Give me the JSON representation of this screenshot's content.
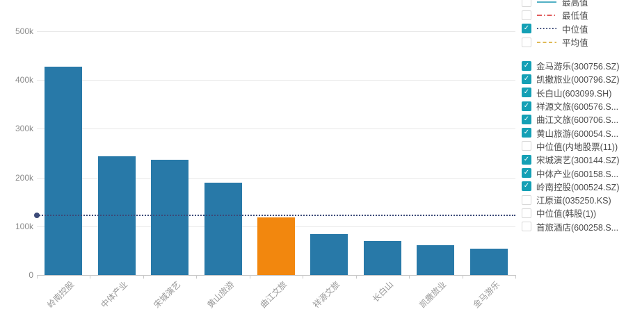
{
  "chart_data": {
    "type": "bar",
    "title": "",
    "xlabel": "",
    "ylabel": "",
    "categories": [
      "岭南控股",
      "中体产业",
      "宋城演艺",
      "黄山旅游",
      "曲江文旅",
      "祥源文旅",
      "长白山",
      "凯撒旅业",
      "金马游乐"
    ],
    "values": [
      427000,
      244000,
      236000,
      189000,
      118000,
      84000,
      70000,
      61000,
      54000
    ],
    "highlight_index": 4,
    "bar_color": "#2879a8",
    "highlight_color": "#f2870e",
    "median_value": 122000,
    "median_color": "#3c4a78",
    "ylim": [
      0,
      500000
    ],
    "y_ticks": [
      {
        "label": "0",
        "value": 0
      },
      {
        "label": "100k",
        "value": 100000
      },
      {
        "label": "200k",
        "value": 200000
      },
      {
        "label": "300k",
        "value": 300000
      },
      {
        "label": "400k",
        "value": 400000
      },
      {
        "label": "500k",
        "value": 500000
      }
    ],
    "grid": true,
    "legend_position": "right"
  },
  "legend": {
    "checkbox_color": "#14a0b5",
    "check_glyph": "✓",
    "line_items": [
      {
        "label": "最高值",
        "checked": false,
        "style": "solid",
        "color": "#52b0c4"
      },
      {
        "label": "最低值",
        "checked": false,
        "style": "dashdot",
        "color": "#e05c5c"
      },
      {
        "label": "中位值",
        "checked": true,
        "style": "dotted",
        "color": "#3c4a78"
      },
      {
        "label": "平均值",
        "checked": false,
        "style": "dashed",
        "color": "#dfba57"
      }
    ],
    "stock_items": [
      {
        "label": "金马游乐(300756.SZ)",
        "checked": true
      },
      {
        "label": "凯撒旅业(000796.SZ)",
        "checked": true
      },
      {
        "label": "长白山(603099.SH)",
        "checked": true
      },
      {
        "label": "祥源文旅(600576.S...",
        "checked": true
      },
      {
        "label": "曲江文旅(600706.S...",
        "checked": true
      },
      {
        "label": "黄山旅游(600054.S...",
        "checked": true
      },
      {
        "label": "中位值(内地股票(11))",
        "checked": false
      },
      {
        "label": "宋城演艺(300144.SZ)",
        "checked": true
      },
      {
        "label": "中体产业(600158.S...",
        "checked": true
      },
      {
        "label": "岭南控股(000524.SZ)",
        "checked": true
      },
      {
        "label": "江原道(035250.KS)",
        "checked": false
      },
      {
        "label": "中位值(韩股(1))",
        "checked": false
      },
      {
        "label": "首旅酒店(600258.S...",
        "checked": false
      }
    ]
  }
}
